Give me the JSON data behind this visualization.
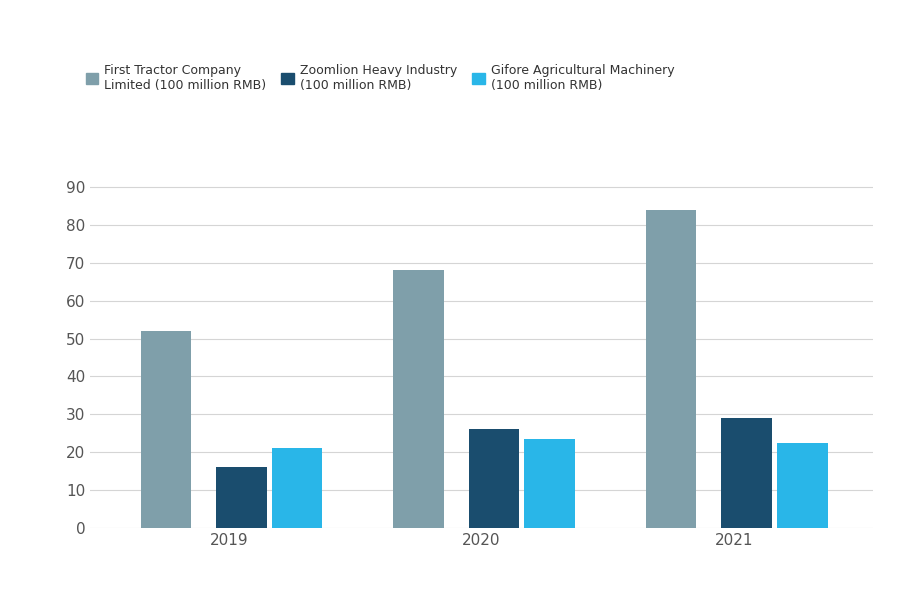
{
  "years": [
    "2019",
    "2020",
    "2021"
  ],
  "series": [
    {
      "name": "First Tractor Company\nLimited (100 million RMB)",
      "values": [
        52,
        68,
        84
      ],
      "color": "#7f9faa"
    },
    {
      "name": "Zoomlion Heavy Industry\n(100 million RMB)",
      "values": [
        16,
        26,
        29
      ],
      "color": "#1a4d6e"
    },
    {
      "name": "Gifore Agricultural Machinery\n(100 million RMB)",
      "values": [
        21,
        23.5,
        22.5
      ],
      "color": "#29b6e8"
    }
  ],
  "ylim": [
    0,
    95
  ],
  "yticks": [
    0,
    10,
    20,
    30,
    40,
    50,
    60,
    70,
    80,
    90
  ],
  "background_color": "#ffffff",
  "grid_color": "#d5d5d5",
  "bar_width": 0.2,
  "legend_fontsize": 9,
  "tick_fontsize": 11
}
